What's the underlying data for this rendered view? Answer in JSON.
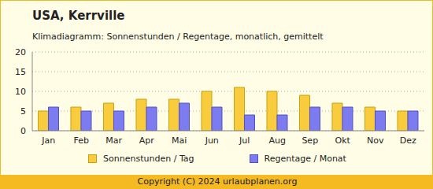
{
  "chart_data": {
    "type": "bar",
    "title": "USA, Kerrville",
    "subtitle": "Klimadiagramm: Sonnenstunden / Regentage, monatlich, gemittelt",
    "annotations": [
      "Copyright (C) 2024 urlaubplanen.org"
    ],
    "categories": [
      "Jan",
      "Feb",
      "Mar",
      "Apr",
      "Mai",
      "Jun",
      "Jul",
      "Aug",
      "Sep",
      "Okt",
      "Nov",
      "Dez"
    ],
    "series": [
      {
        "name": "Sonnenstunden / Tag",
        "color": "#f8cc3c",
        "values": [
          5,
          6,
          7,
          8,
          8,
          10,
          11,
          10,
          9,
          7,
          6,
          5
        ]
      },
      {
        "name": "Regentage / Monat",
        "color": "#7c7cf0",
        "values": [
          6,
          5,
          5,
          6,
          7,
          6,
          4,
          4,
          6,
          6,
          5,
          5
        ]
      }
    ],
    "ylim": [
      0,
      20
    ],
    "yticks": [
      0,
      5,
      10,
      15,
      20
    ],
    "grid": true,
    "legend": "bottom"
  }
}
